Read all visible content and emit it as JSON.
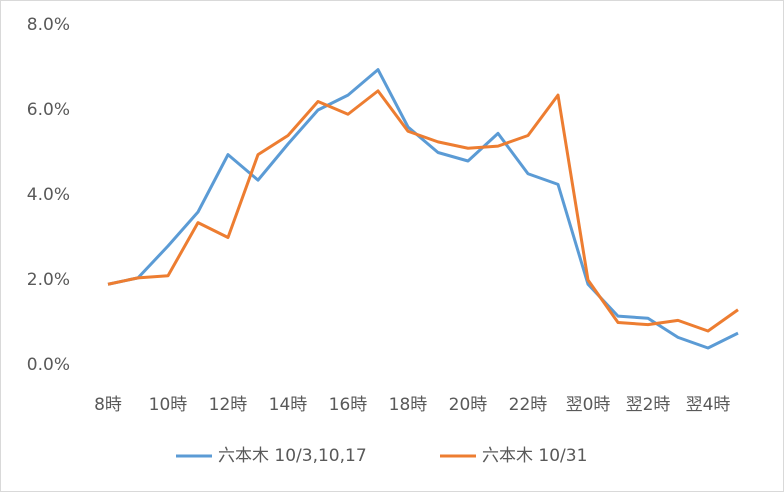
{
  "chart_data": {
    "type": "line",
    "categories": [
      "8時",
      null,
      "10時",
      null,
      "12時",
      null,
      "14時",
      null,
      "16時",
      null,
      "18時",
      null,
      "20時",
      null,
      "22時",
      null,
      "翌0時",
      null,
      "翌2時",
      null,
      "翌4時",
      null
    ],
    "series": [
      {
        "name": "六本木 10/3,10,17",
        "color": "#5b9bd5",
        "values": [
          1.9,
          2.05,
          2.8,
          3.6,
          4.95,
          4.35,
          5.2,
          6.0,
          6.35,
          6.95,
          5.6,
          5.0,
          4.8,
          5.45,
          4.5,
          4.25,
          1.9,
          1.15,
          1.1,
          0.65,
          0.4,
          0.75
        ]
      },
      {
        "name": "六本木 10/31",
        "color": "#ed7d31",
        "values": [
          1.9,
          2.05,
          2.1,
          3.35,
          3.0,
          4.95,
          5.4,
          6.2,
          5.9,
          6.45,
          5.5,
          5.25,
          5.1,
          5.15,
          5.4,
          6.35,
          2.0,
          1.0,
          0.95,
          1.05,
          0.8,
          1.3
        ]
      }
    ],
    "ylim": [
      0,
      8
    ],
    "yticks": [
      {
        "value": 0,
        "label": "0.0%"
      },
      {
        "value": 2,
        "label": "2.0%"
      },
      {
        "value": 4,
        "label": "4.0%"
      },
      {
        "value": 6,
        "label": "6.0%"
      },
      {
        "value": 8,
        "label": "8.0%"
      }
    ],
    "legend": "bottom"
  }
}
